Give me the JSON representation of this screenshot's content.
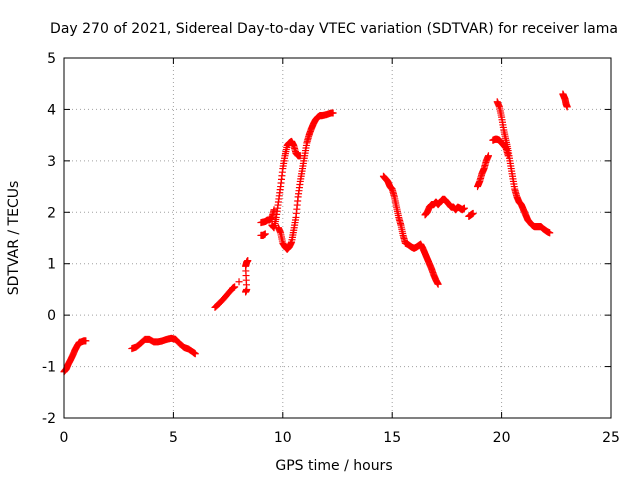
{
  "chart_data": {
    "type": "scatter",
    "title": "Day 270 of 2021, Sidereal Day-to-day VTEC variation (SDTVAR) for receiver lama",
    "xlabel": "GPS time / hours",
    "ylabel": "SDTVAR / TECUs",
    "xlim": [
      0,
      25
    ],
    "ylim": [
      -2,
      5
    ],
    "xticks": [
      "0",
      "5",
      "10",
      "15",
      "20",
      "25"
    ],
    "yticks": [
      "-2",
      "-1",
      "0",
      "1",
      "2",
      "3",
      "4",
      "5"
    ],
    "grid": true,
    "marker": "+",
    "color": "#ff0000",
    "series": [
      {
        "segments": [
          [
            [
              0.0,
              -1.1
            ],
            [
              0.1,
              -1.05
            ],
            [
              0.2,
              -0.95
            ],
            [
              0.3,
              -0.87
            ],
            [
              0.4,
              -0.78
            ],
            [
              0.5,
              -0.68
            ],
            [
              0.6,
              -0.6
            ],
            [
              0.7,
              -0.53
            ],
            [
              0.8,
              -0.52
            ],
            [
              0.9,
              -0.5
            ],
            [
              1.0,
              -0.5
            ]
          ],
          [
            [
              3.1,
              -0.65
            ],
            [
              3.3,
              -0.62
            ],
            [
              3.5,
              -0.55
            ],
            [
              3.7,
              -0.47
            ],
            [
              3.9,
              -0.47
            ],
            [
              4.1,
              -0.52
            ],
            [
              4.3,
              -0.52
            ],
            [
              4.5,
              -0.5
            ],
            [
              4.7,
              -0.47
            ],
            [
              4.9,
              -0.45
            ],
            [
              5.1,
              -0.47
            ],
            [
              5.3,
              -0.56
            ],
            [
              5.5,
              -0.63
            ],
            [
              5.7,
              -0.66
            ],
            [
              5.9,
              -0.72
            ],
            [
              6.0,
              -0.75
            ]
          ],
          [
            [
              6.9,
              0.15
            ],
            [
              7.1,
              0.23
            ],
            [
              7.3,
              0.32
            ],
            [
              7.5,
              0.42
            ],
            [
              7.7,
              0.52
            ],
            [
              7.8,
              0.55
            ]
          ],
          [
            [
              8.0,
              0.65
            ]
          ],
          [
            [
              8.3,
              0.45
            ],
            [
              8.35,
              0.5
            ],
            [
              8.3,
              0.95
            ],
            [
              8.35,
              1.03
            ],
            [
              8.4,
              1.06
            ]
          ],
          [
            [
              9.0,
              1.55
            ],
            [
              9.1,
              1.55
            ],
            [
              9.2,
              1.58
            ]
          ],
          [
            [
              9.0,
              1.8
            ],
            [
              9.2,
              1.82
            ],
            [
              9.3,
              1.85
            ],
            [
              9.4,
              1.85
            ],
            [
              9.5,
              1.9
            ],
            [
              9.6,
              2.05
            ]
          ],
          [
            [
              9.5,
              1.75
            ],
            [
              9.6,
              1.7
            ],
            [
              9.7,
              1.9
            ],
            [
              9.8,
              2.2
            ],
            [
              9.9,
              2.5
            ],
            [
              10.0,
              2.85
            ],
            [
              10.1,
              3.1
            ],
            [
              10.2,
              3.3
            ],
            [
              10.3,
              3.35
            ],
            [
              10.4,
              3.38
            ],
            [
              10.5,
              3.3
            ],
            [
              10.6,
              3.15
            ],
            [
              10.7,
              3.1
            ],
            [
              10.8,
              3.1
            ]
          ],
          [
            [
              9.8,
              1.7
            ],
            [
              9.9,
              1.6
            ],
            [
              10.0,
              1.4
            ],
            [
              10.1,
              1.33
            ],
            [
              10.2,
              1.28
            ],
            [
              10.3,
              1.33
            ],
            [
              10.4,
              1.42
            ],
            [
              10.5,
              1.65
            ],
            [
              10.6,
              1.9
            ],
            [
              10.7,
              2.3
            ],
            [
              10.8,
              2.6
            ],
            [
              10.9,
              2.85
            ],
            [
              11.0,
              3.1
            ],
            [
              11.1,
              3.35
            ],
            [
              11.2,
              3.5
            ],
            [
              11.3,
              3.62
            ],
            [
              11.4,
              3.72
            ],
            [
              11.5,
              3.8
            ],
            [
              11.6,
              3.85
            ],
            [
              11.7,
              3.88
            ],
            [
              11.8,
              3.88
            ],
            [
              12.0,
              3.9
            ],
            [
              12.2,
              3.93
            ],
            [
              12.3,
              3.93
            ]
          ],
          [
            [
              14.6,
              2.7
            ],
            [
              14.7,
              2.65
            ],
            [
              14.8,
              2.6
            ],
            [
              14.9,
              2.5
            ],
            [
              15.0,
              2.45
            ],
            [
              15.1,
              2.3
            ],
            [
              15.2,
              2.1
            ],
            [
              15.3,
              1.9
            ],
            [
              15.4,
              1.75
            ],
            [
              15.5,
              1.55
            ],
            [
              15.6,
              1.4
            ],
            [
              15.7,
              1.38
            ],
            [
              15.8,
              1.35
            ],
            [
              15.9,
              1.32
            ],
            [
              16.0,
              1.3
            ],
            [
              16.1,
              1.32
            ],
            [
              16.2,
              1.35
            ],
            [
              16.3,
              1.38
            ],
            [
              16.4,
              1.3
            ],
            [
              16.5,
              1.2
            ],
            [
              16.6,
              1.1
            ],
            [
              16.7,
              1.0
            ],
            [
              16.8,
              0.9
            ],
            [
              16.9,
              0.78
            ],
            [
              17.0,
              0.68
            ],
            [
              17.1,
              0.6
            ]
          ],
          [
            [
              16.5,
              1.95
            ],
            [
              16.6,
              2.0
            ],
            [
              16.7,
              2.1
            ],
            [
              16.8,
              2.15
            ],
            [
              16.9,
              2.15
            ],
            [
              17.0,
              2.2
            ],
            [
              17.1,
              2.15
            ],
            [
              17.2,
              2.2
            ],
            [
              17.3,
              2.25
            ],
            [
              17.4,
              2.25
            ],
            [
              17.5,
              2.2
            ],
            [
              17.6,
              2.15
            ],
            [
              17.7,
              2.1
            ],
            [
              17.8,
              2.1
            ],
            [
              17.9,
              2.05
            ],
            [
              18.0,
              2.1
            ],
            [
              18.1,
              2.08
            ],
            [
              18.2,
              2.05
            ],
            [
              18.3,
              2.08
            ]
          ],
          [
            [
              18.5,
              1.92
            ],
            [
              18.6,
              1.95
            ],
            [
              18.7,
              1.98
            ]
          ],
          [
            [
              18.9,
              2.5
            ],
            [
              19.0,
              2.6
            ],
            [
              19.1,
              2.75
            ],
            [
              19.2,
              2.85
            ],
            [
              19.3,
              3.0
            ],
            [
              19.4,
              3.1
            ]
          ],
          [
            [
              19.6,
              3.4
            ],
            [
              19.7,
              3.42
            ],
            [
              19.8,
              3.42
            ],
            [
              19.9,
              3.4
            ],
            [
              20.0,
              3.35
            ],
            [
              20.1,
              3.3
            ],
            [
              20.2,
              3.25
            ],
            [
              20.3,
              3.1
            ]
          ],
          [
            [
              19.8,
              4.15
            ],
            [
              19.9,
              4.05
            ],
            [
              20.0,
              3.85
            ],
            [
              20.1,
              3.6
            ],
            [
              20.2,
              3.4
            ],
            [
              20.3,
              3.2
            ],
            [
              20.4,
              2.95
            ],
            [
              20.5,
              2.7
            ],
            [
              20.6,
              2.45
            ],
            [
              20.7,
              2.3
            ],
            [
              20.8,
              2.2
            ],
            [
              20.9,
              2.15
            ],
            [
              21.0,
              2.05
            ],
            [
              21.1,
              1.95
            ],
            [
              21.2,
              1.85
            ],
            [
              21.3,
              1.8
            ],
            [
              21.4,
              1.75
            ],
            [
              21.5,
              1.72
            ],
            [
              21.6,
              1.72
            ],
            [
              21.7,
              1.72
            ],
            [
              21.8,
              1.72
            ],
            [
              21.9,
              1.68
            ],
            [
              22.0,
              1.65
            ],
            [
              22.1,
              1.62
            ],
            [
              22.2,
              1.6
            ]
          ],
          [
            [
              22.8,
              4.3
            ],
            [
              22.85,
              4.25
            ],
            [
              22.9,
              4.2
            ],
            [
              22.95,
              4.1
            ],
            [
              23.0,
              4.05
            ]
          ]
        ]
      }
    ]
  }
}
